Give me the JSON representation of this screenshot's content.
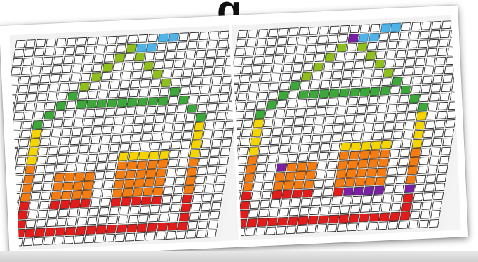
{
  "header": {
    "heading_fragment": "g"
  },
  "panels": [
    {
      "id": "before",
      "variant": "plain"
    },
    {
      "id": "after",
      "variant": "highlighted"
    }
  ],
  "colors": {
    "grid_tile": "#ffffff",
    "grid_line": "#2b2b2b",
    "chimney_smoke": "#4fb3e8",
    "roof_green": "#8fbf1e",
    "wall_green": "#3da83a",
    "yellow": "#f5d400",
    "orange": "#f47c10",
    "red": "#e21b1b",
    "highlight_purple": "#7a1fa3"
  }
}
